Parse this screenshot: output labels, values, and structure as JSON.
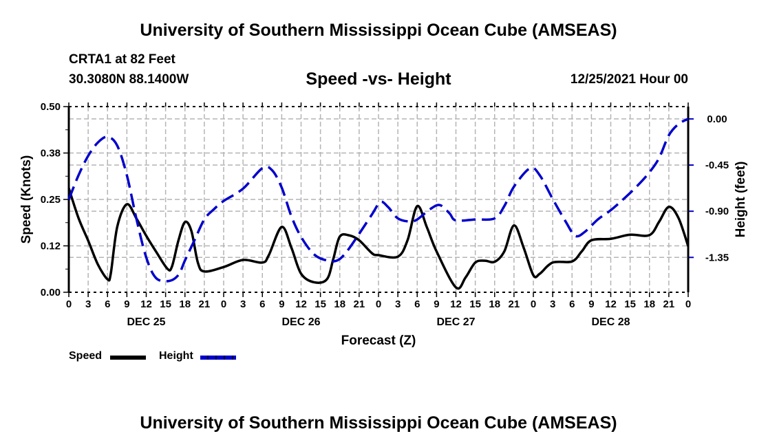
{
  "header": {
    "main_title": "University of Southern Mississippi Ocean Cube (AMSEAS)",
    "station": "CRTA1 at 82 Feet",
    "coordinates": "30.3080N  88.1400W",
    "run_time": "12/25/2021 Hour 00"
  },
  "footer": {
    "title": "University of Southern Mississippi Ocean Cube (AMSEAS)"
  },
  "colors": {
    "speed": "#000000",
    "height": "#0000cc",
    "grid": "#b4b4b4"
  },
  "chart_data": {
    "type": "line",
    "title": "Speed -vs- Height",
    "xlabel": "Forecast (Z)",
    "ylabel": "Speed (Knots)",
    "y2label": "Height (feet)",
    "xlim": [
      0,
      96
    ],
    "ylim": [
      0,
      0.5
    ],
    "y2lim": [
      -1.69,
      0.12
    ],
    "grid": true,
    "legend_position": "bottom-left",
    "x_tick_labels": [
      "0",
      "3",
      "6",
      "9",
      "12",
      "15",
      "18",
      "21",
      "0",
      "3",
      "6",
      "9",
      "12",
      "15",
      "18",
      "21",
      "0",
      "3",
      "6",
      "9",
      "12",
      "15",
      "18",
      "21",
      "0",
      "3",
      "6",
      "9",
      "12",
      "15",
      "18",
      "21",
      "0"
    ],
    "day_labels": [
      {
        "label": "DEC 25",
        "hour": 12
      },
      {
        "label": "DEC 26",
        "hour": 36
      },
      {
        "label": "DEC 27",
        "hour": 60
      },
      {
        "label": "DEC 28",
        "hour": 84
      }
    ],
    "y_ticks": [
      "0.00",
      "0.12",
      "0.25",
      "0.38",
      "0.50"
    ],
    "y2_ticks": [
      "0.00",
      "-0.45",
      "-0.90",
      "-1.35"
    ],
    "series": [
      {
        "name": "Speed",
        "axis": "left",
        "style": "solid",
        "x": [
          0,
          1.5,
          3,
          4.5,
          6,
          6.5,
          7.5,
          9,
          10.5,
          12,
          13.5,
          15.3,
          16,
          17,
          18,
          19,
          20,
          21,
          24,
          27,
          30,
          31,
          33,
          34.5,
          36,
          38,
          40,
          41,
          42,
          43.5,
          45,
          47,
          48,
          51,
          52.5,
          54,
          55.5,
          57,
          60,
          61.5,
          63,
          64.5,
          66,
          67.5,
          69,
          70.5,
          72,
          73,
          75,
          78,
          79.5,
          81,
          84,
          87,
          90,
          91.5,
          93,
          94.5,
          96
        ],
        "values": [
          0.28,
          0.2,
          0.139,
          0.075,
          0.035,
          0.05,
          0.176,
          0.237,
          0.198,
          0.152,
          0.11,
          0.063,
          0.07,
          0.14,
          0.189,
          0.165,
          0.08,
          0.056,
          0.068,
          0.087,
          0.08,
          0.1,
          0.176,
          0.12,
          0.05,
          0.027,
          0.035,
          0.09,
          0.15,
          0.153,
          0.14,
          0.105,
          0.1,
          0.096,
          0.14,
          0.232,
          0.175,
          0.11,
          0.013,
          0.04,
          0.08,
          0.085,
          0.082,
          0.11,
          0.18,
          0.12,
          0.046,
          0.05,
          0.08,
          0.083,
          0.11,
          0.14,
          0.144,
          0.155,
          0.154,
          0.19,
          0.23,
          0.2,
          0.124
        ]
      },
      {
        "name": "Height",
        "axis": "right",
        "style": "dashed",
        "x": [
          0,
          1.5,
          3,
          4.5,
          6,
          7.5,
          9,
          10.5,
          12,
          13.5,
          15.5,
          17,
          18,
          19.5,
          21,
          22.5,
          24,
          27,
          30,
          31.5,
          33,
          34.5,
          36,
          38,
          40,
          41.6,
          43,
          45,
          47,
          48.3,
          49.5,
          51,
          52.8,
          54,
          56,
          57.5,
          59,
          60,
          63,
          66,
          67.5,
          69,
          71.5,
          73,
          75,
          77,
          78.5,
          80,
          82,
          84,
          86,
          88,
          90,
          91.5,
          93,
          94.5,
          96
        ],
        "values": [
          -0.785,
          -0.55,
          -0.36,
          -0.23,
          -0.175,
          -0.26,
          -0.55,
          -0.98,
          -1.35,
          -1.55,
          -1.58,
          -1.52,
          -1.38,
          -1.18,
          -0.98,
          -0.88,
          -0.8,
          -0.68,
          -0.48,
          -0.5,
          -0.67,
          -0.95,
          -1.15,
          -1.32,
          -1.38,
          -1.38,
          -1.3,
          -1.12,
          -0.93,
          -0.81,
          -0.86,
          -0.97,
          -1.0,
          -0.98,
          -0.88,
          -0.84,
          -0.92,
          -0.99,
          -0.98,
          -0.97,
          -0.85,
          -0.66,
          -0.48,
          -0.55,
          -0.78,
          -1.0,
          -1.14,
          -1.1,
          -0.98,
          -0.89,
          -0.78,
          -0.66,
          -0.52,
          -0.38,
          -0.16,
          -0.05,
          0.0
        ]
      }
    ]
  }
}
